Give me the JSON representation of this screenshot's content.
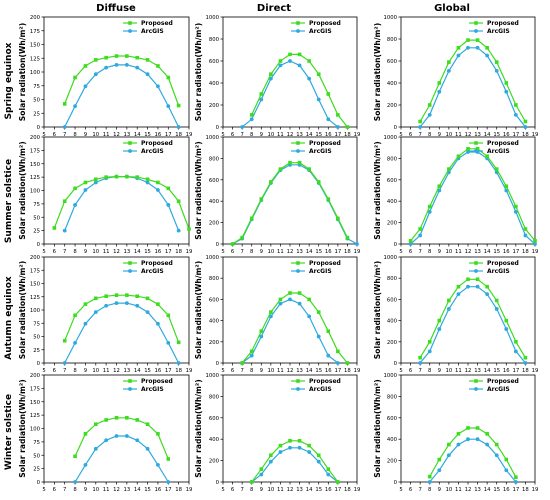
{
  "figure": {
    "col_titles": [
      "Diffuse",
      "Direct",
      "Global"
    ],
    "row_titles": [
      "Spring equinox",
      "Summer solstice",
      "Autumn equinox",
      "Winter solstice"
    ],
    "ylabel": "Solar radiation(Wh/m²)",
    "legend": [
      "Proposed",
      "ArcGIS"
    ],
    "colors": {
      "proposed": "#3ddc1e",
      "arcgis": "#2fa9de",
      "axis": "#000000"
    }
  },
  "chart_data": [
    {
      "type": "line",
      "row": "Spring equinox",
      "column": "Diffuse",
      "xlim": [
        5,
        19
      ],
      "ylim": [
        0,
        200
      ],
      "yticks": [
        0,
        25,
        50,
        75,
        100,
        125,
        150,
        175,
        200
      ],
      "grid": false,
      "legend_position": "top-right",
      "series": [
        {
          "name": "Proposed",
          "x": [
            7,
            8,
            9,
            10,
            11,
            12,
            13,
            14,
            15,
            16,
            17,
            18
          ],
          "values": [
            42,
            90,
            111,
            122,
            126,
            129,
            129,
            126,
            122,
            111,
            90,
            39
          ]
        },
        {
          "name": "ArcGIS",
          "x": [
            7,
            8,
            9,
            10,
            11,
            12,
            13,
            14,
            15,
            16,
            17,
            18
          ],
          "values": [
            0,
            38,
            74,
            96,
            108,
            113,
            113,
            108,
            96,
            74,
            38,
            0
          ]
        }
      ]
    },
    {
      "type": "line",
      "row": "Spring equinox",
      "column": "Direct",
      "xlim": [
        5,
        19
      ],
      "ylim": [
        0,
        1000
      ],
      "yticks": [
        0,
        200,
        400,
        600,
        800,
        1000
      ],
      "grid": false,
      "legend_position": "top-right",
      "series": [
        {
          "name": "Proposed",
          "x": [
            8,
            9,
            10,
            11,
            12,
            13,
            14,
            15,
            16,
            17,
            18
          ],
          "values": [
            110,
            300,
            480,
            600,
            660,
            660,
            600,
            480,
            300,
            110,
            0
          ]
        },
        {
          "name": "ArcGIS",
          "x": [
            7,
            8,
            9,
            10,
            11,
            12,
            13,
            14,
            15,
            16,
            17
          ],
          "values": [
            0,
            70,
            250,
            440,
            560,
            600,
            560,
            440,
            250,
            70,
            0
          ]
        }
      ]
    },
    {
      "type": "line",
      "row": "Spring equinox",
      "column": "Global",
      "xlim": [
        5,
        19
      ],
      "ylim": [
        0,
        1000
      ],
      "yticks": [
        0,
        200,
        400,
        600,
        800,
        1000
      ],
      "grid": false,
      "legend_position": "top-right",
      "series": [
        {
          "name": "Proposed",
          "x": [
            7,
            8,
            9,
            10,
            11,
            12,
            13,
            14,
            15,
            16,
            17,
            18
          ],
          "values": [
            50,
            200,
            400,
            590,
            720,
            790,
            790,
            720,
            590,
            400,
            200,
            50
          ]
        },
        {
          "name": "ArcGIS",
          "x": [
            7,
            8,
            9,
            10,
            11,
            12,
            13,
            14,
            15,
            16,
            17,
            18
          ],
          "values": [
            0,
            110,
            320,
            510,
            650,
            720,
            720,
            650,
            510,
            320,
            110,
            0
          ]
        }
      ]
    },
    {
      "type": "line",
      "row": "Summer solstice",
      "column": "Diffuse",
      "xlim": [
        5,
        19
      ],
      "ylim": [
        0,
        200
      ],
      "yticks": [
        0,
        25,
        50,
        75,
        100,
        125,
        150,
        175,
        200
      ],
      "grid": false,
      "legend_position": "top-right",
      "series": [
        {
          "name": "Proposed",
          "x": [
            6,
            7,
            8,
            9,
            10,
            11,
            12,
            13,
            14,
            15,
            16,
            17,
            18,
            19
          ],
          "values": [
            30,
            80,
            104,
            115,
            121,
            125,
            126,
            126,
            125,
            121,
            115,
            104,
            80,
            28
          ]
        },
        {
          "name": "ArcGIS",
          "x": [
            7,
            8,
            9,
            10,
            11,
            12,
            13,
            14,
            15,
            16,
            17,
            18
          ],
          "values": [
            25,
            73,
            101,
            115,
            123,
            126,
            126,
            123,
            115,
            101,
            73,
            25
          ]
        }
      ]
    },
    {
      "type": "line",
      "row": "Summer solstice",
      "column": "Direct",
      "xlim": [
        5,
        19
      ],
      "ylim": [
        0,
        1000
      ],
      "yticks": [
        0,
        200,
        400,
        600,
        800,
        1000
      ],
      "grid": false,
      "legend_position": "top-right",
      "series": [
        {
          "name": "Proposed",
          "x": [
            6,
            7,
            8,
            9,
            10,
            11,
            12,
            13,
            14,
            15,
            16,
            17,
            18
          ],
          "values": [
            0,
            60,
            240,
            420,
            580,
            700,
            760,
            760,
            700,
            580,
            420,
            240,
            60
          ]
        },
        {
          "name": "ArcGIS",
          "x": [
            6,
            7,
            8,
            9,
            10,
            11,
            12,
            13,
            14,
            15,
            16,
            17,
            18,
            19
          ],
          "values": [
            0,
            50,
            230,
            410,
            570,
            690,
            740,
            740,
            690,
            570,
            410,
            230,
            50,
            0
          ]
        }
      ]
    },
    {
      "type": "line",
      "row": "Summer solstice",
      "column": "Global",
      "xlim": [
        5,
        19
      ],
      "ylim": [
        0,
        1000
      ],
      "yticks": [
        0,
        200,
        400,
        600,
        800,
        1000
      ],
      "grid": false,
      "legend_position": "top-right",
      "series": [
        {
          "name": "Proposed",
          "x": [
            6,
            7,
            8,
            9,
            10,
            11,
            12,
            13,
            14,
            15,
            16,
            17,
            18,
            19
          ],
          "values": [
            30,
            140,
            350,
            540,
            700,
            820,
            890,
            890,
            820,
            700,
            540,
            350,
            140,
            30
          ]
        },
        {
          "name": "ArcGIS",
          "x": [
            6,
            7,
            8,
            9,
            10,
            11,
            12,
            13,
            14,
            15,
            16,
            17,
            18,
            19
          ],
          "values": [
            0,
            80,
            300,
            500,
            670,
            800,
            860,
            860,
            800,
            670,
            500,
            300,
            80,
            0
          ]
        }
      ]
    },
    {
      "type": "line",
      "row": "Autumn equinox",
      "column": "Diffuse",
      "xlim": [
        5,
        19
      ],
      "ylim": [
        0,
        200
      ],
      "yticks": [
        0,
        25,
        50,
        75,
        100,
        125,
        150,
        175,
        200
      ],
      "grid": false,
      "legend_position": "top-right",
      "series": [
        {
          "name": "Proposed",
          "x": [
            7,
            8,
            9,
            10,
            11,
            12,
            13,
            14,
            15,
            16,
            17,
            18
          ],
          "values": [
            42,
            90,
            111,
            122,
            126,
            128,
            128,
            126,
            122,
            111,
            90,
            39
          ]
        },
        {
          "name": "ArcGIS",
          "x": [
            7,
            8,
            9,
            10,
            11,
            12,
            13,
            14,
            15,
            16,
            17,
            18
          ],
          "values": [
            0,
            38,
            74,
            96,
            108,
            113,
            113,
            108,
            96,
            74,
            38,
            0
          ]
        }
      ]
    },
    {
      "type": "line",
      "row": "Autumn equinox",
      "column": "Direct",
      "xlim": [
        5,
        19
      ],
      "ylim": [
        0,
        1000
      ],
      "yticks": [
        0,
        200,
        400,
        600,
        800,
        1000
      ],
      "grid": false,
      "legend_position": "top-right",
      "series": [
        {
          "name": "Proposed",
          "x": [
            7,
            8,
            9,
            10,
            11,
            12,
            13,
            14,
            15,
            16,
            17,
            18
          ],
          "values": [
            0,
            110,
            300,
            480,
            600,
            660,
            660,
            600,
            480,
            300,
            110,
            0
          ]
        },
        {
          "name": "ArcGIS",
          "x": [
            7,
            8,
            9,
            10,
            11,
            12,
            13,
            14,
            15,
            16,
            17
          ],
          "values": [
            0,
            70,
            250,
            440,
            560,
            600,
            560,
            440,
            250,
            70,
            0
          ]
        }
      ]
    },
    {
      "type": "line",
      "row": "Autumn equinox",
      "column": "Global",
      "xlim": [
        5,
        19
      ],
      "ylim": [
        0,
        1000
      ],
      "yticks": [
        0,
        200,
        400,
        600,
        800,
        1000
      ],
      "grid": false,
      "legend_position": "top-right",
      "series": [
        {
          "name": "Proposed",
          "x": [
            7,
            8,
            9,
            10,
            11,
            12,
            13,
            14,
            15,
            16,
            17,
            18
          ],
          "values": [
            50,
            200,
            400,
            590,
            720,
            790,
            790,
            720,
            590,
            400,
            200,
            50
          ]
        },
        {
          "name": "ArcGIS",
          "x": [
            7,
            8,
            9,
            10,
            11,
            12,
            13,
            14,
            15,
            16,
            17,
            18
          ],
          "values": [
            0,
            110,
            320,
            510,
            650,
            720,
            720,
            650,
            510,
            320,
            110,
            0
          ]
        }
      ]
    },
    {
      "type": "line",
      "row": "Winter solstice",
      "column": "Diffuse",
      "xlim": [
        5,
        19
      ],
      "ylim": [
        0,
        200
      ],
      "yticks": [
        0,
        25,
        50,
        75,
        100,
        125,
        150,
        175,
        200
      ],
      "grid": false,
      "legend_position": "top-right",
      "series": [
        {
          "name": "Proposed",
          "x": [
            8,
            9,
            10,
            11,
            12,
            13,
            14,
            15,
            16,
            17
          ],
          "values": [
            48,
            90,
            108,
            116,
            120,
            120,
            116,
            108,
            90,
            43
          ]
        },
        {
          "name": "ArcGIS",
          "x": [
            8,
            9,
            10,
            11,
            12,
            13,
            14,
            15,
            16,
            17
          ],
          "values": [
            0,
            32,
            62,
            78,
            86,
            86,
            78,
            62,
            32,
            0
          ]
        }
      ]
    },
    {
      "type": "line",
      "row": "Winter solstice",
      "column": "Direct",
      "xlim": [
        5,
        19
      ],
      "ylim": [
        0,
        1000
      ],
      "yticks": [
        0,
        200,
        400,
        600,
        800,
        1000
      ],
      "grid": false,
      "legend_position": "top-right",
      "series": [
        {
          "name": "Proposed",
          "x": [
            8,
            9,
            10,
            11,
            12,
            13,
            14,
            15,
            16,
            17
          ],
          "values": [
            0,
            120,
            250,
            340,
            385,
            385,
            340,
            250,
            120,
            0
          ]
        },
        {
          "name": "ArcGIS",
          "x": [
            8,
            9,
            10,
            11,
            12,
            13,
            14,
            15,
            16,
            17
          ],
          "values": [
            0,
            70,
            190,
            280,
            320,
            320,
            280,
            190,
            70,
            0
          ]
        }
      ]
    },
    {
      "type": "line",
      "row": "Winter solstice",
      "column": "Global",
      "xlim": [
        5,
        19
      ],
      "ylim": [
        0,
        1000
      ],
      "yticks": [
        0,
        200,
        400,
        600,
        800,
        1000
      ],
      "grid": false,
      "legend_position": "top-right",
      "series": [
        {
          "name": "Proposed",
          "x": [
            8,
            9,
            10,
            11,
            12,
            13,
            14,
            15,
            16,
            17
          ],
          "values": [
            50,
            210,
            350,
            450,
            505,
            505,
            450,
            350,
            210,
            45
          ]
        },
        {
          "name": "ArcGIS",
          "x": [
            8,
            9,
            10,
            11,
            12,
            13,
            14,
            15,
            16,
            17
          ],
          "values": [
            0,
            110,
            250,
            350,
            400,
            400,
            350,
            250,
            110,
            0
          ]
        }
      ]
    }
  ]
}
